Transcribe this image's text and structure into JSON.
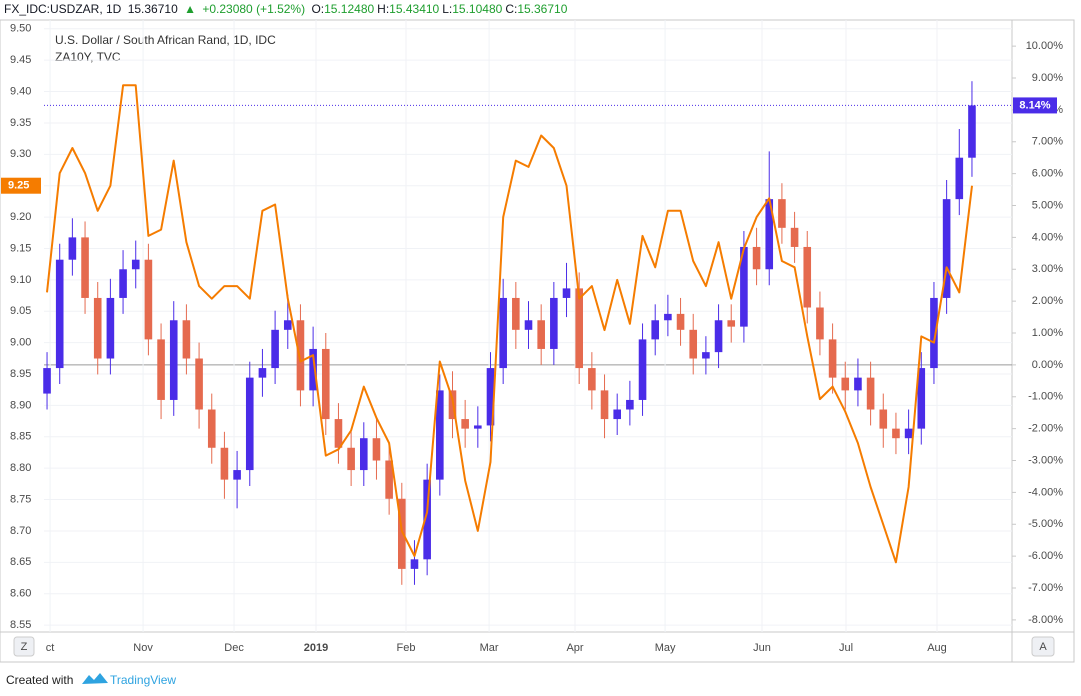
{
  "ui": {
    "symbol": "FX_IDC:USDZAR, 1D",
    "last": "15.36710",
    "arrow": "▲",
    "change": "+0.23080 (+1.52%)",
    "ohlc": [
      {
        "label": "O:",
        "value": "15.12480"
      },
      {
        "label": "H:",
        "value": "15.43410"
      },
      {
        "label": "L:",
        "value": "15.10480"
      },
      {
        "label": "C:",
        "value": "15.36710"
      }
    ],
    "left_button": "Z",
    "right_button": "A",
    "created_with": "Created with",
    "brand": "TradingView"
  },
  "chart_data": {
    "type": "candlestick",
    "xlim": [
      -0.24,
      76.16
    ],
    "xticks": [
      {
        "value": 0.24,
        "label": "ct"
      },
      {
        "value": 7.58,
        "label": "Nov"
      },
      {
        "value": 14.76,
        "label": "Dec"
      },
      {
        "value": 21.23,
        "label": "2019"
      },
      {
        "value": 28.33,
        "label": "Feb"
      },
      {
        "value": 34.89,
        "label": "Mar"
      },
      {
        "value": 41.67,
        "label": "Apr"
      },
      {
        "value": 48.78,
        "label": "May"
      },
      {
        "value": 56.43,
        "label": "Jun"
      },
      {
        "value": 63.06,
        "label": "Jul"
      },
      {
        "value": 70.24,
        "label": "Aug"
      }
    ],
    "ylim": [
      8.539,
      9.514
    ],
    "yticks": [
      {
        "value": 9.5,
        "label": "9.50"
      },
      {
        "value": 9.45,
        "label": "9.45"
      },
      {
        "value": 9.4,
        "label": "9.40"
      },
      {
        "value": 9.35,
        "label": "9.35"
      },
      {
        "value": 9.3,
        "label": "9.30"
      },
      {
        "value": 9.25,
        "label": "9.25"
      },
      {
        "value": 9.2,
        "label": "9.20"
      },
      {
        "value": 9.15,
        "label": "9.15"
      },
      {
        "value": 9.1,
        "label": "9.10"
      },
      {
        "value": 9.05,
        "label": "9.05"
      },
      {
        "value": 9.0,
        "label": "9.00"
      },
      {
        "value": 8.95,
        "label": "8.95"
      },
      {
        "value": 8.9,
        "label": "8.90"
      },
      {
        "value": 8.85,
        "label": "8.85"
      },
      {
        "value": 8.8,
        "label": "8.80"
      },
      {
        "value": 8.75,
        "label": "8.75"
      },
      {
        "value": 8.7,
        "label": "8.70"
      },
      {
        "value": 8.65,
        "label": "8.65"
      },
      {
        "value": 8.6,
        "label": "8.60"
      },
      {
        "value": 8.55,
        "label": "8.55"
      }
    ],
    "y2lim": [
      -8.38,
      10.82
    ],
    "y2ticks": [
      {
        "value": 10,
        "label": "10.00%"
      },
      {
        "value": 9,
        "label": "9.00%"
      },
      {
        "value": 8,
        "label": "8.00%"
      },
      {
        "value": 7,
        "label": "7.00%"
      },
      {
        "value": 6,
        "label": "6.00%"
      },
      {
        "value": 5,
        "label": "5.00%"
      },
      {
        "value": 4,
        "label": "4.00%"
      },
      {
        "value": 3,
        "label": "3.00%"
      },
      {
        "value": 2,
        "label": "2.00%"
      },
      {
        "value": 1,
        "label": "1.00%"
      },
      {
        "value": 0,
        "label": "0.00%"
      },
      {
        "value": -1,
        "label": "-1.00%"
      },
      {
        "value": -2,
        "label": "-2.00%"
      },
      {
        "value": -3,
        "label": "-3.00%"
      },
      {
        "value": -4,
        "label": "-4.00%"
      },
      {
        "value": -5,
        "label": "-5.00%"
      },
      {
        "value": -6,
        "label": "-6.00%"
      },
      {
        "value": -7,
        "label": "-7.00%"
      },
      {
        "value": -8,
        "label": "-8.00%"
      }
    ],
    "grid": true,
    "series": [
      {
        "name": "U.S. Dollar / South African Rand, 1D, IDC",
        "type": "candlestick",
        "axis": "y2",
        "up_color": "#4a2ce8",
        "down_color": "#e56a4e",
        "last_label": "8.14%",
        "open": [
          -0.9,
          -0.1,
          3.3,
          4.0,
          2.1,
          0.2,
          2.1,
          3.0,
          3.3,
          0.8,
          -1.1,
          1.4,
          0.2,
          -1.4,
          -2.6,
          -3.6,
          -3.3,
          -0.4,
          -0.1,
          1.1,
          1.4,
          -0.8,
          0.5,
          -1.7,
          -2.6,
          -3.3,
          -2.3,
          -3.0,
          -4.2,
          -6.4,
          -6.1,
          -3.6,
          -0.8,
          -1.7,
          -2.0,
          -1.9,
          -0.1,
          2.1,
          1.1,
          1.4,
          0.5,
          2.1,
          2.4,
          -0.1,
          -0.8,
          -1.7,
          -1.4,
          -1.1,
          0.8,
          1.4,
          1.6,
          1.1,
          0.2,
          0.4,
          1.4,
          1.2,
          3.7,
          3.0,
          5.2,
          4.3,
          3.7,
          1.8,
          0.8,
          -0.4,
          -0.8,
          -0.4,
          -1.4,
          -2.0,
          -2.3,
          -2.0,
          -0.1,
          2.1,
          5.2,
          6.5
        ],
        "high": [
          0.4,
          3.8,
          4.6,
          4.5,
          2.6,
          2.7,
          3.6,
          3.9,
          3.8,
          1.3,
          2.0,
          1.9,
          0.7,
          -0.9,
          -2.1,
          -2.7,
          0.1,
          0.5,
          1.7,
          2.2,
          1.9,
          1.2,
          1.0,
          -1.2,
          -2.0,
          -1.8,
          -1.7,
          -2.5,
          -3.7,
          -5.5,
          -3.1,
          -0.3,
          -0.2,
          -1.1,
          -1.3,
          0.4,
          2.7,
          2.6,
          2.0,
          1.9,
          2.6,
          3.2,
          2.9,
          0.4,
          -0.3,
          -0.9,
          -0.5,
          1.3,
          1.9,
          2.2,
          2.1,
          1.6,
          0.9,
          1.9,
          1.9,
          4.2,
          4.3,
          6.7,
          5.7,
          4.8,
          4.2,
          2.3,
          1.3,
          0.1,
          0.2,
          0.1,
          -0.9,
          -1.5,
          -1.4,
          0.4,
          2.6,
          5.8,
          7.4,
          8.9
        ],
        "low": [
          -1.4,
          -0.6,
          2.8,
          1.6,
          -0.3,
          -0.3,
          1.6,
          2.4,
          0.3,
          -1.7,
          -1.6,
          -0.3,
          -2.0,
          -3.1,
          -4.2,
          -4.5,
          -3.8,
          -1.0,
          -0.6,
          0.5,
          -1.3,
          -1.3,
          -2.2,
          -3.1,
          -3.8,
          -3.8,
          -3.6,
          -4.7,
          -6.9,
          -6.9,
          -6.6,
          -4.1,
          -2.3,
          -2.6,
          -2.6,
          -2.4,
          -0.6,
          0.5,
          0.5,
          0.0,
          0.0,
          1.5,
          -0.6,
          -1.4,
          -2.3,
          -2.2,
          -1.9,
          -1.6,
          0.3,
          0.9,
          0.6,
          -0.3,
          -0.3,
          -0.1,
          0.7,
          0.7,
          2.5,
          2.5,
          3.8,
          3.2,
          1.3,
          0.3,
          -0.9,
          -1.4,
          -1.3,
          -1.9,
          -2.6,
          -2.8,
          -2.8,
          -2.5,
          -0.6,
          1.6,
          4.7,
          5.9
        ],
        "close": [
          -0.1,
          3.3,
          4.0,
          2.1,
          0.2,
          2.1,
          3.0,
          3.3,
          0.8,
          -1.1,
          1.4,
          0.2,
          -1.4,
          -2.6,
          -3.6,
          -3.3,
          -0.4,
          -0.1,
          1.1,
          1.4,
          -0.8,
          0.5,
          -1.7,
          -2.6,
          -3.3,
          -2.3,
          -3.0,
          -4.2,
          -6.4,
          -6.1,
          -3.6,
          -0.8,
          -1.7,
          -2.0,
          -1.9,
          -0.1,
          2.1,
          1.1,
          1.4,
          0.5,
          2.1,
          2.4,
          -0.1,
          -0.8,
          -1.7,
          -1.4,
          -1.1,
          0.8,
          1.4,
          1.6,
          1.1,
          0.2,
          0.4,
          1.4,
          1.2,
          3.7,
          3.0,
          5.2,
          4.3,
          3.7,
          1.8,
          0.8,
          -0.4,
          -0.8,
          -0.4,
          -1.4,
          -2.0,
          -2.3,
          -2.0,
          -0.1,
          2.1,
          5.2,
          6.5,
          8.14
        ]
      },
      {
        "name": "ZA10Y, TVC",
        "type": "line",
        "axis": "y",
        "color": "#f57c00",
        "values": [
          9.08,
          9.27,
          9.31,
          9.27,
          9.21,
          9.25,
          9.41,
          9.41,
          9.17,
          9.18,
          9.29,
          9.16,
          9.09,
          9.07,
          9.09,
          9.09,
          9.07,
          9.21,
          9.22,
          9.07,
          8.97,
          8.98,
          8.82,
          8.83,
          8.86,
          8.93,
          8.88,
          8.84,
          8.7,
          8.66,
          8.73,
          8.97,
          8.91,
          8.78,
          8.7,
          8.81,
          9.2,
          9.29,
          9.28,
          9.33,
          9.31,
          9.25,
          9.07,
          9.09,
          9.02,
          9.1,
          9.03,
          9.17,
          9.12,
          9.21,
          9.21,
          9.13,
          9.09,
          9.16,
          9.07,
          9.15,
          9.2,
          9.23,
          9.13,
          9.12,
          9.01,
          8.91,
          8.93,
          8.89,
          8.84,
          8.77,
          8.71,
          8.65,
          8.77,
          9.01,
          9.0,
          9.12,
          9.08,
          9.25
        ]
      }
    ]
  }
}
